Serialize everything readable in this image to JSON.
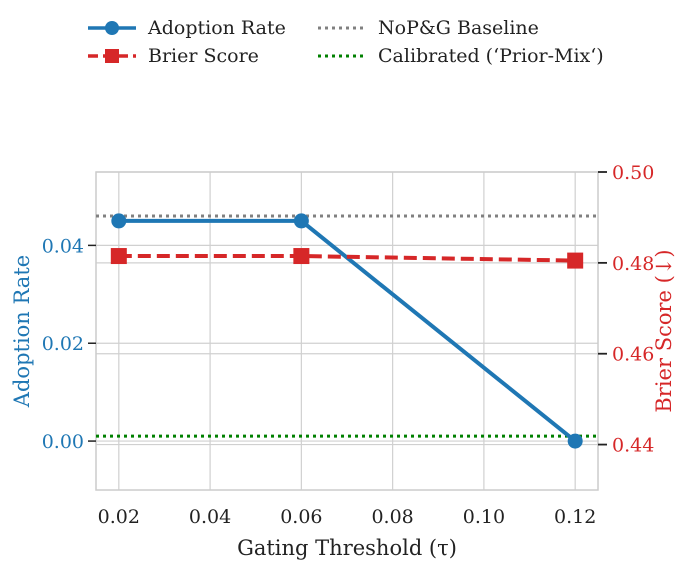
{
  "chart_data": {
    "type": "line",
    "title": "",
    "xlabel": "Gating Threshold (τ)",
    "ylabel_left": "Adoption Rate",
    "ylabel_right": "Brier Score (↓)",
    "x": [
      0.02,
      0.06,
      0.12
    ],
    "x_ticks": [
      0.02,
      0.04,
      0.06,
      0.08,
      0.1,
      0.12
    ],
    "x_tick_labels": [
      "0.02",
      "0.04",
      "0.06",
      "0.08",
      "0.10",
      "0.12"
    ],
    "xlim": [
      0.015,
      0.125
    ],
    "ylim_left": [
      -0.01,
      0.055
    ],
    "y_ticks_left": [
      0.0,
      0.02,
      0.04
    ],
    "y_tick_labels_left": [
      "0.00",
      "0.02",
      "0.04"
    ],
    "ylim_right": [
      0.43,
      0.5
    ],
    "y_ticks_right": [
      0.44,
      0.46,
      0.48,
      0.5
    ],
    "y_tick_labels_right": [
      "0.44",
      "0.46",
      "0.48",
      "0.50"
    ],
    "series": [
      {
        "name": "Adoption Rate",
        "axis": "left",
        "values": [
          0.045,
          0.045,
          0.0
        ],
        "color": "#1f77b4",
        "marker": "circle",
        "style": "solid"
      },
      {
        "name": "Brier Score",
        "axis": "right",
        "values": [
          0.4815,
          0.4815,
          0.4805
        ],
        "color": "#d62728",
        "marker": "square",
        "style": "dashed"
      }
    ],
    "reference_lines": [
      {
        "name": "NoP&G Baseline",
        "axis": "left",
        "value": 0.046,
        "color": "#808080",
        "style": "dotted"
      },
      {
        "name": "Calibrated (‘Prior-Mix‘)",
        "axis": "left",
        "value": 0.001,
        "color": "#008000",
        "style": "dotted"
      }
    ],
    "legend": {
      "placement": "top",
      "entries": [
        "Adoption Rate",
        "Brier Score",
        "NoP&G Baseline",
        "Calibrated (‘Prior-Mix‘)"
      ]
    },
    "grid": true
  }
}
